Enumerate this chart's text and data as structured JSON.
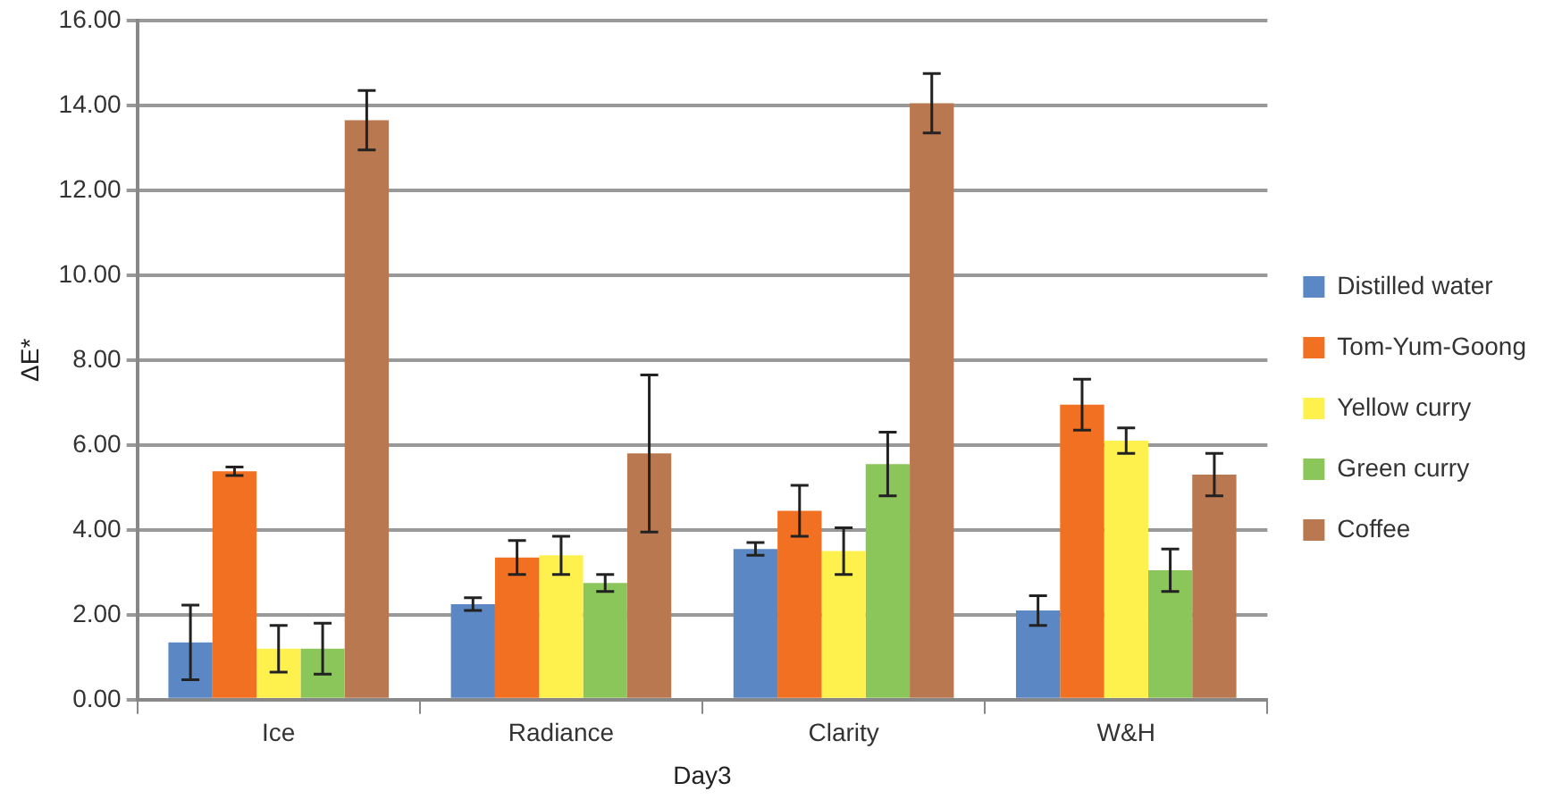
{
  "chart_data": {
    "type": "bar",
    "xlabel": "Day3",
    "ylabel": "ΔE*",
    "categories": [
      "Ice",
      "Radiance",
      "Clarity",
      "W&H"
    ],
    "series": [
      {
        "name": "Distilled water",
        "color": "#5b87c5",
        "values": [
          1.35,
          2.25,
          3.55,
          2.1
        ],
        "errors": [
          0.88,
          0.15,
          0.15,
          0.35
        ]
      },
      {
        "name": "Tom-Yum-Goong",
        "color": "#f27022",
        "values": [
          5.38,
          3.35,
          4.45,
          6.95
        ],
        "errors": [
          0.1,
          0.4,
          0.6,
          0.6
        ]
      },
      {
        "name": "Yellow curry",
        "color": "#fff14d",
        "values": [
          1.2,
          3.4,
          3.5,
          6.1
        ],
        "errors": [
          0.55,
          0.45,
          0.55,
          0.3
        ]
      },
      {
        "name": "Green curry",
        "color": "#8bc65a",
        "values": [
          1.2,
          2.75,
          5.55,
          3.05
        ],
        "errors": [
          0.6,
          0.2,
          0.75,
          0.5
        ]
      },
      {
        "name": "Coffee",
        "color": "#b9784f",
        "values": [
          13.65,
          5.8,
          14.05,
          5.3
        ],
        "errors": [
          0.7,
          1.85,
          0.7,
          0.5
        ]
      }
    ],
    "ylim": [
      0,
      16
    ],
    "yticks": [
      {
        "value": 0,
        "label": "0.00"
      },
      {
        "value": 2,
        "label": "2.00"
      },
      {
        "value": 4,
        "label": "4.00"
      },
      {
        "value": 6,
        "label": "6.00"
      },
      {
        "value": 8,
        "label": "8.00"
      },
      {
        "value": 10,
        "label": "10.00"
      },
      {
        "value": 12,
        "label": "12.00"
      },
      {
        "value": 14,
        "label": "14.00"
      },
      {
        "value": 16,
        "label": "16.00"
      }
    ],
    "grid": "y",
    "legend": "right"
  }
}
